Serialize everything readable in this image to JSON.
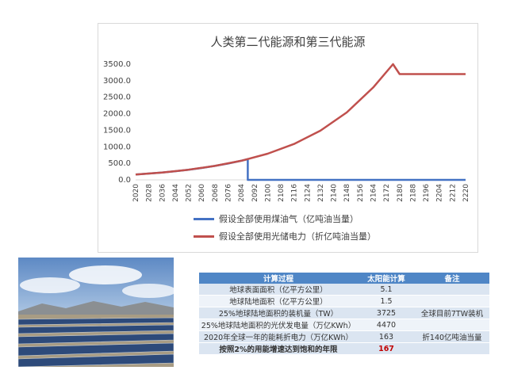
{
  "chart_data": {
    "type": "line",
    "title": "人类第二代能源和第三代能源",
    "x_ticks": [
      "2020",
      "2028",
      "2036",
      "2044",
      "2052",
      "2060",
      "2068",
      "2076",
      "2084",
      "2092",
      "2100",
      "2108",
      "2116",
      "2124",
      "2132",
      "2140",
      "2148",
      "2156",
      "2164",
      "2172",
      "2180",
      "2188",
      "2196",
      "2204",
      "2212",
      "2220"
    ],
    "y_ticks": [
      "0.0",
      "500.0",
      "1000.0",
      "1500.0",
      "2000.0",
      "2500.0",
      "3000.0",
      "3500.0"
    ],
    "ylim": [
      0,
      3500
    ],
    "xlim": [
      2020,
      2220
    ],
    "series": [
      {
        "name": "假设全部使用煤油气（亿吨油当量）",
        "color": "#4472c4",
        "x": [
          2020,
          2028,
          2036,
          2044,
          2052,
          2060,
          2068,
          2076,
          2084,
          2088,
          2088,
          2120,
          2160,
          2220
        ],
        "y": [
          163,
          191,
          224,
          262,
          307,
          360,
          421,
          494,
          578,
          626,
          0,
          0,
          0,
          0
        ]
      },
      {
        "name": "假设全部使用光储电力（折亿吨油当量）",
        "color": "#c0504d",
        "x": [
          2020,
          2036,
          2052,
          2068,
          2084,
          2100,
          2116,
          2132,
          2148,
          2164,
          2176,
          2180,
          2188,
          2200,
          2220
        ],
        "y": [
          163,
          224,
          307,
          421,
          578,
          792,
          1086,
          1488,
          2040,
          2796,
          3547,
          3200,
          3200,
          3200,
          3200
        ]
      }
    ],
    "legend_position": "bottom",
    "grid": false
  },
  "photo": {
    "subject": "solar-panel-field-photo"
  },
  "table": {
    "headers": [
      "计算过程",
      "太阳能计算",
      "备注"
    ],
    "rows": [
      [
        "地球表面面积（亿平方公里）",
        "5.1",
        ""
      ],
      [
        "地球陆地面积（亿平方公里）",
        "1.5",
        ""
      ],
      [
        "25%地球陆地面积的装机量（TW）",
        "3725",
        "全球目前7TW装机"
      ],
      [
        "25%地球陆地面积的光伏发电量（万亿KWh）",
        "4470",
        ""
      ],
      [
        "2020年全球一年的能耗折电力（万亿KWh）",
        "163",
        "折140亿吨油当量"
      ],
      [
        "按照2%的用能增速达到饱和的年限",
        "167",
        ""
      ]
    ],
    "highlight_color": "#c00000",
    "header_color": "#4f86c6"
  }
}
